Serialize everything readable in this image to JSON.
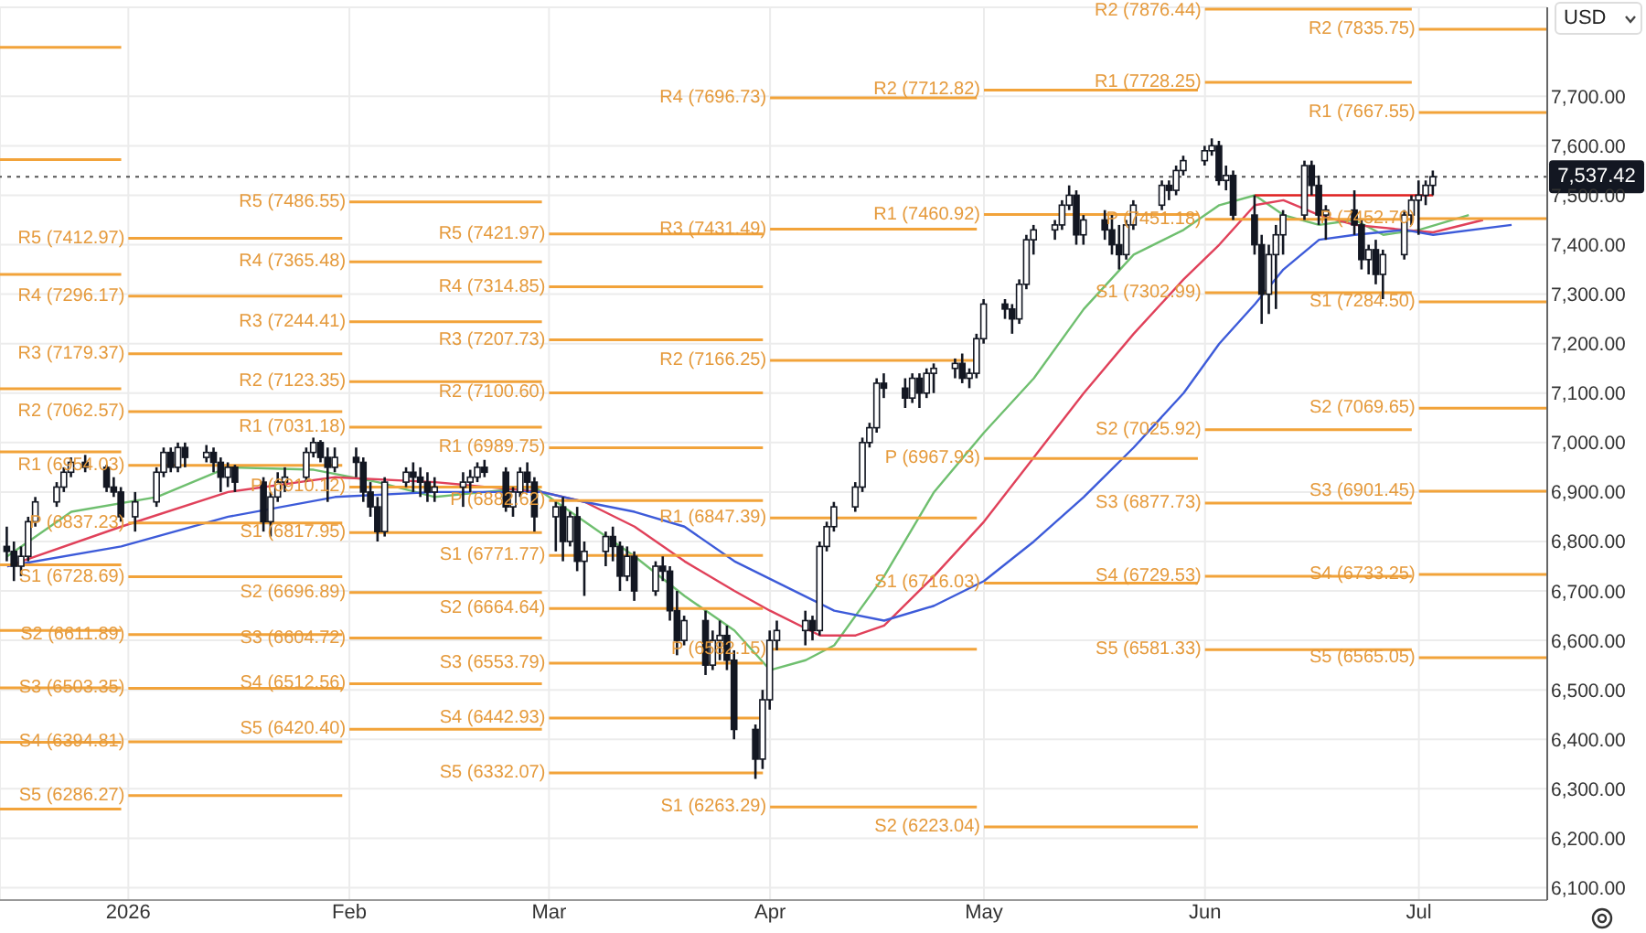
{
  "chart_data": {
    "type": "candlestick",
    "color": "#131722",
    "x": [
      "2025-12-15",
      "2025-12-16",
      "2025-12-17",
      "2025-12-18",
      "2025-12-19",
      "2025-12-22",
      "2025-12-23",
      "2025-12-24",
      "2025-12-26",
      "2025-12-29",
      "2025-12-30",
      "2025-12-31",
      "2026-01-02",
      "2026-01-05",
      "2026-01-06",
      "2026-01-07",
      "2026-01-08",
      "2026-01-09",
      "2026-01-12",
      "2026-01-13",
      "2026-01-14",
      "2026-01-15",
      "2026-01-16",
      "2026-01-20",
      "2026-01-21",
      "2026-01-22",
      "2026-01-23",
      "2026-01-26",
      "2026-01-27",
      "2026-01-28",
      "2026-01-29",
      "2026-01-30",
      "2026-02-02",
      "2026-02-03",
      "2026-02-04",
      "2026-02-05",
      "2026-02-06",
      "2026-02-09",
      "2026-02-10",
      "2026-02-11",
      "2026-02-12",
      "2026-02-13",
      "2026-02-17",
      "2026-02-18",
      "2026-02-19",
      "2026-02-20",
      "2026-02-23",
      "2026-02-24",
      "2026-02-25",
      "2026-02-26",
      "2026-02-27",
      "2026-03-02",
      "2026-03-03",
      "2026-03-04",
      "2026-03-05",
      "2026-03-06",
      "2026-03-09",
      "2026-03-10",
      "2026-03-11",
      "2026-03-12",
      "2026-03-13",
      "2026-03-16",
      "2026-03-17",
      "2026-03-18",
      "2026-03-19",
      "2026-03-20",
      "2026-03-23",
      "2026-03-24",
      "2026-03-25",
      "2026-03-26",
      "2026-03-27",
      "2026-03-30",
      "2026-03-31",
      "2026-04-01",
      "2026-04-02",
      "2026-04-06",
      "2026-04-07",
      "2026-04-08",
      "2026-04-09",
      "2026-04-10",
      "2026-04-13",
      "2026-04-14",
      "2026-04-15",
      "2026-04-16",
      "2026-04-17",
      "2026-04-20",
      "2026-04-21",
      "2026-04-22",
      "2026-04-23",
      "2026-04-24",
      "2026-04-27",
      "2026-04-28",
      "2026-04-29",
      "2026-04-30",
      "2026-05-01",
      "2026-05-04",
      "2026-05-05",
      "2026-05-06",
      "2026-05-07",
      "2026-05-08",
      "2026-05-11",
      "2026-05-12",
      "2026-05-13",
      "2026-05-14",
      "2026-05-15",
      "2026-05-18",
      "2026-05-19",
      "2026-05-20",
      "2026-05-21",
      "2026-05-22",
      "2026-05-26",
      "2026-05-27",
      "2026-05-28",
      "2026-05-29",
      "2026-06-01",
      "2026-06-02",
      "2026-06-03",
      "2026-06-04",
      "2026-06-05",
      "2026-06-08",
      "2026-06-09",
      "2026-06-10",
      "2026-06-11",
      "2026-06-12",
      "2026-06-15",
      "2026-06-16",
      "2026-06-17",
      "2026-06-18",
      "2026-06-22",
      "2026-06-23",
      "2026-06-24",
      "2026-06-25",
      "2026-06-26",
      "2026-06-29",
      "2026-06-30",
      "2026-07-01",
      "2026-07-02",
      "2026-07-03"
    ],
    "ohlc": [
      [
        6790,
        6830,
        6760,
        6780
      ],
      [
        6780,
        6800,
        6720,
        6750
      ],
      [
        6750,
        6790,
        6730,
        6770
      ],
      [
        6770,
        6850,
        6760,
        6840
      ],
      [
        6840,
        6890,
        6830,
        6880
      ],
      [
        6880,
        6920,
        6870,
        6910
      ],
      [
        6910,
        6950,
        6900,
        6940
      ],
      [
        6940,
        6970,
        6930,
        6960
      ],
      [
        6960,
        6975,
        6940,
        6950
      ],
      [
        6950,
        6955,
        6900,
        6910
      ],
      [
        6910,
        6930,
        6890,
        6900
      ],
      [
        6900,
        6910,
        6840,
        6850
      ],
      [
        6850,
        6900,
        6820,
        6880
      ],
      [
        6880,
        6950,
        6870,
        6940
      ],
      [
        6940,
        6990,
        6930,
        6980
      ],
      [
        6980,
        6990,
        6940,
        6950
      ],
      [
        6950,
        7000,
        6940,
        6990
      ],
      [
        6990,
        7000,
        6950,
        6970
      ],
      [
        6970,
        6995,
        6960,
        6980
      ],
      [
        6980,
        6990,
        6940,
        6960
      ],
      [
        6960,
        6970,
        6900,
        6930
      ],
      [
        6930,
        6960,
        6910,
        6950
      ],
      [
        6950,
        6955,
        6900,
        6920
      ],
      [
        6920,
        6930,
        6820,
        6840
      ],
      [
        6840,
        6900,
        6810,
        6890
      ],
      [
        6890,
        6940,
        6880,
        6920
      ],
      [
        6920,
        6950,
        6900,
        6930
      ],
      [
        6930,
        6990,
        6920,
        6980
      ],
      [
        6980,
        7010,
        6970,
        7000
      ],
      [
        7000,
        7005,
        6960,
        6970
      ],
      [
        6970,
        6990,
        6880,
        6950
      ],
      [
        6950,
        6990,
        6940,
        6970
      ],
      [
        6970,
        6990,
        6930,
        6960
      ],
      [
        6960,
        6970,
        6880,
        6900
      ],
      [
        6900,
        6920,
        6850,
        6870
      ],
      [
        6870,
        6890,
        6800,
        6820
      ],
      [
        6820,
        6930,
        6810,
        6920
      ],
      [
        6920,
        6950,
        6910,
        6940
      ],
      [
        6940,
        6960,
        6900,
        6930
      ],
      [
        6930,
        6950,
        6890,
        6920
      ],
      [
        6920,
        6940,
        6880,
        6900
      ],
      [
        6900,
        6930,
        6880,
        6910
      ],
      [
        6910,
        6940,
        6870,
        6920
      ],
      [
        6920,
        6945,
        6900,
        6930
      ],
      [
        6930,
        6960,
        6920,
        6950
      ],
      [
        6950,
        6965,
        6930,
        6940
      ],
      [
        6940,
        6950,
        6860,
        6870
      ],
      [
        6870,
        6910,
        6850,
        6900
      ],
      [
        6900,
        6950,
        6890,
        6940
      ],
      [
        6940,
        6960,
        6900,
        6920
      ],
      [
        6920,
        6930,
        6820,
        6850
      ],
      [
        6850,
        6880,
        6780,
        6870
      ],
      [
        6870,
        6890,
        6760,
        6800
      ],
      [
        6800,
        6860,
        6790,
        6850
      ],
      [
        6850,
        6870,
        6740,
        6760
      ],
      [
        6760,
        6800,
        6690,
        6780
      ],
      [
        6780,
        6820,
        6750,
        6810
      ],
      [
        6810,
        6830,
        6760,
        6790
      ],
      [
        6790,
        6800,
        6700,
        6730
      ],
      [
        6730,
        6790,
        6720,
        6770
      ],
      [
        6770,
        6780,
        6680,
        6700
      ],
      [
        6700,
        6760,
        6690,
        6750
      ],
      [
        6750,
        6770,
        6720,
        6740
      ],
      [
        6740,
        6750,
        6640,
        6660
      ],
      [
        6660,
        6700,
        6570,
        6600
      ],
      [
        6600,
        6650,
        6590,
        6640
      ],
      [
        6640,
        6660,
        6530,
        6550
      ],
      [
        6550,
        6620,
        6540,
        6600
      ],
      [
        6600,
        6640,
        6560,
        6610
      ],
      [
        6610,
        6630,
        6540,
        6560
      ],
      [
        6560,
        6580,
        6400,
        6420
      ],
      [
        6420,
        6430,
        6320,
        6360
      ],
      [
        6360,
        6500,
        6340,
        6480
      ],
      [
        6480,
        6620,
        6460,
        6600
      ],
      [
        6600,
        6640,
        6580,
        6620
      ],
      [
        6620,
        6660,
        6590,
        6640
      ],
      [
        6640,
        6650,
        6600,
        6620
      ],
      [
        6620,
        6800,
        6610,
        6790
      ],
      [
        6790,
        6840,
        6780,
        6830
      ],
      [
        6830,
        6880,
        6820,
        6870
      ],
      [
        6870,
        6920,
        6860,
        6910
      ],
      [
        6910,
        7010,
        6900,
        7000
      ],
      [
        7000,
        7040,
        6990,
        7030
      ],
      [
        7030,
        7130,
        7020,
        7120
      ],
      [
        7120,
        7140,
        7090,
        7110
      ],
      [
        7110,
        7130,
        7070,
        7090
      ],
      [
        7090,
        7140,
        7080,
        7130
      ],
      [
        7130,
        7140,
        7070,
        7100
      ],
      [
        7100,
        7150,
        7090,
        7140
      ],
      [
        7140,
        7160,
        7100,
        7150
      ],
      [
        7150,
        7170,
        7130,
        7160
      ],
      [
        7160,
        7180,
        7120,
        7130
      ],
      [
        7130,
        7150,
        7110,
        7140
      ],
      [
        7140,
        7220,
        7130,
        7210
      ],
      [
        7210,
        7290,
        7200,
        7280
      ],
      [
        7280,
        7290,
        7250,
        7270
      ],
      [
        7270,
        7280,
        7220,
        7250
      ],
      [
        7250,
        7330,
        7240,
        7320
      ],
      [
        7320,
        7420,
        7310,
        7410
      ],
      [
        7410,
        7440,
        7380,
        7430
      ],
      [
        7430,
        7450,
        7410,
        7440
      ],
      [
        7440,
        7490,
        7430,
        7480
      ],
      [
        7480,
        7520,
        7470,
        7500
      ],
      [
        7500,
        7510,
        7400,
        7420
      ],
      [
        7420,
        7460,
        7400,
        7450
      ],
      [
        7450,
        7470,
        7410,
        7430
      ],
      [
        7430,
        7460,
        7380,
        7400
      ],
      [
        7400,
        7440,
        7350,
        7380
      ],
      [
        7380,
        7450,
        7370,
        7440
      ],
      [
        7440,
        7490,
        7430,
        7480
      ],
      [
        7480,
        7530,
        7470,
        7520
      ],
      [
        7520,
        7530,
        7490,
        7510
      ],
      [
        7510,
        7560,
        7500,
        7550
      ],
      [
        7550,
        7580,
        7540,
        7570
      ],
      [
        7570,
        7600,
        7560,
        7590
      ],
      [
        7590,
        7615,
        7580,
        7600
      ],
      [
        7600,
        7610,
        7520,
        7530
      ],
      [
        7530,
        7560,
        7510,
        7540
      ],
      [
        7540,
        7550,
        7450,
        7460
      ],
      [
        7460,
        7500,
        7380,
        7400
      ],
      [
        7400,
        7420,
        7240,
        7300
      ],
      [
        7300,
        7400,
        7260,
        7380
      ],
      [
        7380,
        7440,
        7270,
        7420
      ],
      [
        7420,
        7470,
        7380,
        7460
      ],
      [
        7460,
        7570,
        7450,
        7560
      ],
      [
        7560,
        7570,
        7500,
        7520
      ],
      [
        7520,
        7540,
        7440,
        7460
      ],
      [
        7460,
        7480,
        7410,
        7470
      ],
      [
        7470,
        7510,
        7420,
        7440
      ],
      [
        7440,
        7450,
        7350,
        7370
      ],
      [
        7370,
        7400,
        7340,
        7390
      ],
      [
        7390,
        7410,
        7320,
        7340
      ],
      [
        7340,
        7390,
        7290,
        7380
      ],
      [
        7380,
        7470,
        7370,
        7460
      ],
      [
        7460,
        7500,
        7440,
        7490
      ],
      [
        7490,
        7530,
        7420,
        7500
      ],
      [
        7500,
        7530,
        7480,
        7520
      ],
      [
        7520,
        7550,
        7500,
        7537.42
      ]
    ],
    "series": [
      {
        "type": "line",
        "color": "#6fbf6f",
        "x": [
          "2025-12-15",
          "2025-12-24",
          "2026-01-05",
          "2026-01-15",
          "2026-01-27",
          "2026-02-05",
          "2026-02-13",
          "2026-02-27",
          "2026-03-06",
          "2026-03-13",
          "2026-03-20",
          "2026-03-27",
          "2026-04-01",
          "2026-04-06",
          "2026-04-10",
          "2026-04-17",
          "2026-04-24",
          "2026-05-01",
          "2026-05-08",
          "2026-05-15",
          "2026-05-22",
          "2026-05-29",
          "2026-06-03",
          "2026-06-08",
          "2026-06-12",
          "2026-06-17",
          "2026-06-22",
          "2026-06-26",
          "2026-07-01",
          "2026-07-08"
        ],
        "values": [
          6770,
          6860,
          6890,
          6950,
          6945,
          6920,
          6890,
          6910,
          6840,
          6770,
          6690,
          6620,
          6540,
          6560,
          6590,
          6730,
          6900,
          7020,
          7130,
          7270,
          7380,
          7430,
          7480,
          7500,
          7460,
          7440,
          7450,
          7420,
          7430,
          7460
        ]
      },
      {
        "type": "line",
        "color": "#e0415a",
        "x": [
          "2025-12-15",
          "2025-12-31",
          "2026-01-15",
          "2026-01-30",
          "2026-02-13",
          "2026-02-28",
          "2026-03-06",
          "2026-03-13",
          "2026-03-20",
          "2026-03-27",
          "2026-04-01",
          "2026-04-08",
          "2026-04-13",
          "2026-04-17",
          "2026-04-24",
          "2026-05-01",
          "2026-05-08",
          "2026-05-15",
          "2026-05-22",
          "2026-05-29",
          "2026-06-03",
          "2026-06-08",
          "2026-06-12",
          "2026-06-17",
          "2026-06-22",
          "2026-06-29",
          "2026-07-03",
          "2026-07-10"
        ],
        "values": [
          6750,
          6830,
          6900,
          6930,
          6920,
          6900,
          6880,
          6830,
          6760,
          6700,
          6660,
          6610,
          6610,
          6630,
          6730,
          6840,
          6970,
          7100,
          7220,
          7330,
          7400,
          7480,
          7490,
          7460,
          7440,
          7430,
          7425,
          7450
        ]
      },
      {
        "type": "line",
        "color": "#3d5bd9",
        "x": [
          "2025-12-15",
          "2025-12-31",
          "2026-01-15",
          "2026-01-30",
          "2026-02-13",
          "2026-02-28",
          "2026-03-06",
          "2026-03-13",
          "2026-03-20",
          "2026-03-27",
          "2026-04-03",
          "2026-04-10",
          "2026-04-17",
          "2026-04-24",
          "2026-05-01",
          "2026-05-08",
          "2026-05-15",
          "2026-05-22",
          "2026-05-29",
          "2026-06-03",
          "2026-06-08",
          "2026-06-12",
          "2026-06-17",
          "2026-06-22",
          "2026-06-29",
          "2026-07-03",
          "2026-07-14"
        ],
        "values": [
          6750,
          6790,
          6850,
          6890,
          6900,
          6900,
          6880,
          6860,
          6830,
          6760,
          6710,
          6660,
          6640,
          6670,
          6720,
          6800,
          6890,
          6990,
          7100,
          7200,
          7280,
          7350,
          7410,
          7420,
          7430,
          7420,
          7440
        ]
      },
      {
        "type": "line",
        "color": "#e02020",
        "x": [
          "2026-06-08",
          "2026-07-03"
        ],
        "values": [
          7500,
          7500
        ]
      },
      {
        "type": "line",
        "color": "#f2a33a",
        "x": [
          "2025-12-14",
          "2025-12-31"
        ],
        "values": [
          7799,
          7799
        ]
      },
      {
        "type": "line",
        "color": "#f2a33a",
        "x": [
          "2025-12-14",
          "2025-12-31"
        ],
        "values": [
          7572,
          7572
        ]
      },
      {
        "type": "line",
        "color": "#f2a33a",
        "x": [
          "2025-12-14",
          "2025-12-31"
        ],
        "values": [
          7340,
          7340
        ]
      },
      {
        "type": "line",
        "color": "#f2a33a",
        "x": [
          "2025-12-14",
          "2025-12-31"
        ],
        "values": [
          7109,
          7109
        ]
      },
      {
        "type": "line",
        "color": "#f2a33a",
        "x": [
          "2025-12-14",
          "2025-12-31"
        ],
        "values": [
          6981,
          6981
        ]
      },
      {
        "type": "line",
        "color": "#f2a33a",
        "x": [
          "2025-12-14",
          "2025-12-31"
        ],
        "values": [
          6753,
          6753
        ]
      },
      {
        "type": "line",
        "color": "#f2a33a",
        "x": [
          "2025-12-14",
          "2025-12-31"
        ],
        "values": [
          6620,
          6620
        ]
      },
      {
        "type": "line",
        "color": "#f2a33a",
        "x": [
          "2025-12-14",
          "2025-12-31"
        ],
        "values": [
          6504,
          6504
        ]
      },
      {
        "type": "line",
        "color": "#f2a33a",
        "x": [
          "2025-12-14",
          "2025-12-31"
        ],
        "values": [
          6394,
          6394
        ]
      },
      {
        "type": "line",
        "color": "#f2a33a",
        "x": [
          "2025-12-14",
          "2025-12-31"
        ],
        "values": [
          6259,
          6259
        ]
      },
      {
        "type": "line",
        "name": "R5 (7412.97)",
        "color": "#f2a33a",
        "x": [
          "2026-01-01",
          "2026-01-31"
        ],
        "values": [
          7412.97,
          7412.97
        ]
      },
      {
        "type": "line",
        "name": "R4 (7296.17)",
        "color": "#f2a33a",
        "x": [
          "2026-01-01",
          "2026-01-31"
        ],
        "values": [
          7296.17,
          7296.17
        ]
      },
      {
        "type": "line",
        "name": "R3 (7179.37)",
        "color": "#f2a33a",
        "x": [
          "2026-01-01",
          "2026-01-31"
        ],
        "values": [
          7179.37,
          7179.37
        ]
      },
      {
        "type": "line",
        "name": "R2 (7062.57)",
        "color": "#f2a33a",
        "x": [
          "2026-01-01",
          "2026-01-31"
        ],
        "values": [
          7062.57,
          7062.57
        ]
      },
      {
        "type": "line",
        "name": "R1 (6954.03)",
        "color": "#f2a33a",
        "x": [
          "2026-01-01",
          "2026-01-31"
        ],
        "values": [
          6954.03,
          6954.03
        ]
      },
      {
        "type": "line",
        "name": "P (6837.23)",
        "color": "#f2a33a",
        "x": [
          "2026-01-01",
          "2026-01-31"
        ],
        "values": [
          6837.23,
          6837.23
        ]
      },
      {
        "type": "line",
        "name": "S1 (6728.69)",
        "color": "#f2a33a",
        "x": [
          "2026-01-01",
          "2026-01-31"
        ],
        "values": [
          6728.69,
          6728.69
        ]
      },
      {
        "type": "line",
        "name": "S2 (6611.89)",
        "color": "#f2a33a",
        "x": [
          "2026-01-01",
          "2026-01-31"
        ],
        "values": [
          6611.89,
          6611.89
        ]
      },
      {
        "type": "line",
        "name": "S3 (6503.35)",
        "color": "#f2a33a",
        "x": [
          "2026-01-01",
          "2026-01-31"
        ],
        "values": [
          6503.35,
          6503.35
        ]
      },
      {
        "type": "line",
        "name": "S4 (6394.81)",
        "color": "#f2a33a",
        "x": [
          "2026-01-01",
          "2026-01-31"
        ],
        "values": [
          6394.81,
          6394.81
        ]
      },
      {
        "type": "line",
        "name": "S5 (6286.27)",
        "color": "#f2a33a",
        "x": [
          "2026-01-01",
          "2026-01-31"
        ],
        "values": [
          6286.27,
          6286.27
        ]
      },
      {
        "type": "line",
        "name": "R5 (7486.55)",
        "color": "#f2a33a",
        "x": [
          "2026-02-01",
          "2026-02-28"
        ],
        "values": [
          7486.55,
          7486.55
        ]
      },
      {
        "type": "line",
        "name": "R4 (7365.48)",
        "color": "#f2a33a",
        "x": [
          "2026-02-01",
          "2026-02-28"
        ],
        "values": [
          7365.48,
          7365.48
        ]
      },
      {
        "type": "line",
        "name": "R3 (7244.41)",
        "color": "#f2a33a",
        "x": [
          "2026-02-01",
          "2026-02-28"
        ],
        "values": [
          7244.41,
          7244.41
        ]
      },
      {
        "type": "line",
        "name": "R2 (7123.35)",
        "color": "#f2a33a",
        "x": [
          "2026-02-01",
          "2026-02-28"
        ],
        "values": [
          7123.35,
          7123.35
        ]
      },
      {
        "type": "line",
        "name": "R1 (7031.18)",
        "color": "#f2a33a",
        "x": [
          "2026-02-01",
          "2026-02-28"
        ],
        "values": [
          7031.18,
          7031.18
        ]
      },
      {
        "type": "line",
        "name": "P (6910.12)",
        "color": "#f2a33a",
        "x": [
          "2026-02-01",
          "2026-02-28"
        ],
        "values": [
          6910.12,
          6910.12
        ]
      },
      {
        "type": "line",
        "name": "S1 (6817.95)",
        "color": "#f2a33a",
        "x": [
          "2026-02-01",
          "2026-02-28"
        ],
        "values": [
          6817.95,
          6817.95
        ]
      },
      {
        "type": "line",
        "name": "S2 (6696.89)",
        "color": "#f2a33a",
        "x": [
          "2026-02-01",
          "2026-02-28"
        ],
        "values": [
          6696.89,
          6696.89
        ]
      },
      {
        "type": "line",
        "name": "S3 (6604.72)",
        "color": "#f2a33a",
        "x": [
          "2026-02-01",
          "2026-02-28"
        ],
        "values": [
          6604.72,
          6604.72
        ]
      },
      {
        "type": "line",
        "name": "S4 (6512.56)",
        "color": "#f2a33a",
        "x": [
          "2026-02-01",
          "2026-02-28"
        ],
        "values": [
          6512.56,
          6512.56
        ]
      },
      {
        "type": "line",
        "name": "S5 (6420.40)",
        "color": "#f2a33a",
        "x": [
          "2026-02-01",
          "2026-02-28"
        ],
        "values": [
          6420.4,
          6420.4
        ]
      },
      {
        "type": "line",
        "name": "R5 (7421.97)",
        "color": "#f2a33a",
        "x": [
          "2026-03-01",
          "2026-03-31"
        ],
        "values": [
          7421.97,
          7421.97
        ]
      },
      {
        "type": "line",
        "name": "R4 (7314.85)",
        "color": "#f2a33a",
        "x": [
          "2026-03-01",
          "2026-03-31"
        ],
        "values": [
          7314.85,
          7314.85
        ]
      },
      {
        "type": "line",
        "name": "R3 (7207.73)",
        "color": "#f2a33a",
        "x": [
          "2026-03-01",
          "2026-03-31"
        ],
        "values": [
          7207.73,
          7207.73
        ]
      },
      {
        "type": "line",
        "name": "R2 (7100.60)",
        "color": "#f2a33a",
        "x": [
          "2026-03-01",
          "2026-03-31"
        ],
        "values": [
          7100.6,
          7100.6
        ]
      },
      {
        "type": "line",
        "name": "R1 (6989.75)",
        "color": "#f2a33a",
        "x": [
          "2026-03-01",
          "2026-03-31"
        ],
        "values": [
          6989.75,
          6989.75
        ]
      },
      {
        "type": "line",
        "name": "P (6882.62)",
        "color": "#f2a33a",
        "x": [
          "2026-03-01",
          "2026-03-31"
        ],
        "values": [
          6882.62,
          6882.62
        ]
      },
      {
        "type": "line",
        "name": "S1 (6771.77)",
        "color": "#f2a33a",
        "x": [
          "2026-03-01",
          "2026-03-31"
        ],
        "values": [
          6771.77,
          6771.77
        ]
      },
      {
        "type": "line",
        "name": "S2 (6664.64)",
        "color": "#f2a33a",
        "x": [
          "2026-03-01",
          "2026-03-31"
        ],
        "values": [
          6664.64,
          6664.64
        ]
      },
      {
        "type": "line",
        "name": "S3 (6553.79)",
        "color": "#f2a33a",
        "x": [
          "2026-03-01",
          "2026-03-31"
        ],
        "values": [
          6553.79,
          6553.79
        ]
      },
      {
        "type": "line",
        "name": "S4 (6442.93)",
        "color": "#f2a33a",
        "x": [
          "2026-03-01",
          "2026-03-31"
        ],
        "values": [
          6442.93,
          6442.93
        ]
      },
      {
        "type": "line",
        "name": "S5 (6332.07)",
        "color": "#f2a33a",
        "x": [
          "2026-03-01",
          "2026-03-31"
        ],
        "values": [
          6332.07,
          6332.07
        ]
      },
      {
        "type": "line",
        "name": "R4 (7696.73)",
        "color": "#f2a33a",
        "x": [
          "2026-04-01",
          "2026-04-30"
        ],
        "values": [
          7696.73,
          7696.73
        ]
      },
      {
        "type": "line",
        "name": "R3 (7431.49)",
        "color": "#f2a33a",
        "x": [
          "2026-04-01",
          "2026-04-30"
        ],
        "values": [
          7431.49,
          7431.49
        ]
      },
      {
        "type": "line",
        "name": "R2 (7166.25)",
        "color": "#f2a33a",
        "x": [
          "2026-04-01",
          "2026-04-30"
        ],
        "values": [
          7166.25,
          7166.25
        ]
      },
      {
        "type": "line",
        "name": "R1 (6847.39)",
        "color": "#f2a33a",
        "x": [
          "2026-04-01",
          "2026-04-30"
        ],
        "values": [
          6847.39,
          6847.39
        ]
      },
      {
        "type": "line",
        "name": "P (6582.15)",
        "color": "#f2a33a",
        "x": [
          "2026-04-01",
          "2026-04-30"
        ],
        "values": [
          6582.15,
          6582.15
        ]
      },
      {
        "type": "line",
        "name": "S1 (6263.29)",
        "color": "#f2a33a",
        "x": [
          "2026-04-01",
          "2026-04-30"
        ],
        "values": [
          6263.29,
          6263.29
        ]
      },
      {
        "type": "line",
        "name": "R2 (7712.82)",
        "color": "#f2a33a",
        "x": [
          "2026-05-01",
          "2026-05-31"
        ],
        "values": [
          7712.82,
          7712.82
        ]
      },
      {
        "type": "line",
        "name": "R1 (7460.92)",
        "color": "#f2a33a",
        "x": [
          "2026-05-01",
          "2026-05-31"
        ],
        "values": [
          7460.92,
          7460.92
        ]
      },
      {
        "type": "line",
        "name": "P (6967.93)",
        "color": "#f2a33a",
        "x": [
          "2026-05-01",
          "2026-05-31"
        ],
        "values": [
          6967.93,
          6967.93
        ]
      },
      {
        "type": "line",
        "name": "S1 (6716.03)",
        "color": "#f2a33a",
        "x": [
          "2026-05-01",
          "2026-05-31"
        ],
        "values": [
          6716.03,
          6716.03
        ]
      },
      {
        "type": "line",
        "name": "S2 (6223.04)",
        "color": "#f2a33a",
        "x": [
          "2026-05-01",
          "2026-05-31"
        ],
        "values": [
          6223.04,
          6223.04
        ]
      },
      {
        "type": "line",
        "name": "R2 (7876.44)",
        "color": "#f2a33a",
        "x": [
          "2026-06-01",
          "2026-06-30"
        ],
        "values": [
          7876.44,
          7876.44
        ]
      },
      {
        "type": "line",
        "name": "R1 (7728.25)",
        "color": "#f2a33a",
        "x": [
          "2026-06-01",
          "2026-06-30"
        ],
        "values": [
          7728.25,
          7728.25
        ]
      },
      {
        "type": "line",
        "name": "P (7451.18)",
        "color": "#f2a33a",
        "x": [
          "2026-06-01",
          "2026-06-30"
        ],
        "values": [
          7451.18,
          7451.18
        ]
      },
      {
        "type": "line",
        "name": "S1 (7302.99)",
        "color": "#f2a33a",
        "x": [
          "2026-06-01",
          "2026-06-30"
        ],
        "values": [
          7302.99,
          7302.99
        ]
      },
      {
        "type": "line",
        "name": "S2 (7025.92)",
        "color": "#f2a33a",
        "x": [
          "2026-06-01",
          "2026-06-30"
        ],
        "values": [
          7025.92,
          7025.92
        ]
      },
      {
        "type": "line",
        "name": "S3 (6877.73)",
        "color": "#f2a33a",
        "x": [
          "2026-06-01",
          "2026-06-30"
        ],
        "values": [
          6877.73,
          6877.73
        ]
      },
      {
        "type": "line",
        "name": "S4 (6729.53)",
        "color": "#f2a33a",
        "x": [
          "2026-06-01",
          "2026-06-30"
        ],
        "values": [
          6729.53,
          6729.53
        ]
      },
      {
        "type": "line",
        "name": "S5 (6581.33)",
        "color": "#f2a33a",
        "x": [
          "2026-06-01",
          "2026-06-30"
        ],
        "values": [
          6581.33,
          6581.33
        ]
      },
      {
        "type": "line",
        "name": "R2 (7835.75)",
        "color": "#f2a33a",
        "x": [
          "2026-07-01",
          "2026-07-19"
        ],
        "values": [
          7835.75,
          7835.75
        ]
      },
      {
        "type": "line",
        "name": "R1 (7667.55)",
        "color": "#f2a33a",
        "x": [
          "2026-07-01",
          "2026-07-19"
        ],
        "values": [
          7667.55,
          7667.55
        ]
      },
      {
        "type": "line",
        "name": "P (7452.70)",
        "color": "#f2a33a",
        "x": [
          "2026-07-01",
          "2026-07-19"
        ],
        "values": [
          7452.7,
          7452.7
        ]
      },
      {
        "type": "line",
        "name": "S1 (7284.50)",
        "color": "#f2a33a",
        "x": [
          "2026-07-01",
          "2026-07-19"
        ],
        "values": [
          7284.5,
          7284.5
        ]
      },
      {
        "type": "line",
        "name": "S2 (7069.65)",
        "color": "#f2a33a",
        "x": [
          "2026-07-01",
          "2026-07-19"
        ],
        "values": [
          7069.65,
          7069.65
        ]
      },
      {
        "type": "line",
        "name": "S3 (6901.45)",
        "color": "#f2a33a",
        "x": [
          "2026-07-01",
          "2026-07-19"
        ],
        "values": [
          6901.45,
          6901.45
        ]
      },
      {
        "type": "line",
        "name": "S4 (6733.25)",
        "color": "#f2a33a",
        "x": [
          "2026-07-01",
          "2026-07-19"
        ],
        "values": [
          6733.25,
          6733.25
        ]
      },
      {
        "type": "line",
        "name": "S5 (6565.05)",
        "color": "#f2a33a",
        "x": [
          "2026-07-01",
          "2026-07-19"
        ],
        "values": [
          6565.05,
          6565.05
        ]
      }
    ],
    "xlim": [
      "2025-12-14",
      "2026-07-19"
    ],
    "xticks": [
      {
        "value": "2026-01-01",
        "label": "2026"
      },
      {
        "value": "2026-02-01",
        "label": "Feb"
      },
      {
        "value": "2026-03-01",
        "label": "Mar"
      },
      {
        "value": "2026-04-01",
        "label": "Apr"
      },
      {
        "value": "2026-05-01",
        "label": "May"
      },
      {
        "value": "2026-06-01",
        "label": "Jun"
      },
      {
        "value": "2026-07-01",
        "label": "Jul"
      }
    ],
    "ylim": [
      6075,
      7880
    ],
    "yticks": [
      {
        "value": 6100,
        "label": "6,100.00"
      },
      {
        "value": 6200,
        "label": "6,200.00"
      },
      {
        "value": 6300,
        "label": "6,300.00"
      },
      {
        "value": 6400,
        "label": "6,400.00"
      },
      {
        "value": 6500,
        "label": "6,500.00"
      },
      {
        "value": 6600,
        "label": "6,600.00"
      },
      {
        "value": 6700,
        "label": "6,700.00"
      },
      {
        "value": 6800,
        "label": "6,800.00"
      },
      {
        "value": 6900,
        "label": "6,900.00"
      },
      {
        "value": 7000,
        "label": "7,000.00"
      },
      {
        "value": 7100,
        "label": "7,100.00"
      },
      {
        "value": 7200,
        "label": "7,200.00"
      },
      {
        "value": 7300,
        "label": "7,300.00"
      },
      {
        "value": 7400,
        "label": "7,400.00"
      },
      {
        "value": 7500,
        "label": "7,500.00"
      },
      {
        "value": 7600,
        "label": "7,600.00"
      },
      {
        "value": 7700,
        "label": "7,700.00"
      }
    ],
    "grid": true,
    "marker": "none",
    "ref_lines": [
      {
        "axis": "y",
        "value": 7537.42,
        "label": "7,537.42",
        "line_style": "dotted",
        "color": "#555555"
      }
    ],
    "annotations": [
      "USD"
    ]
  }
}
